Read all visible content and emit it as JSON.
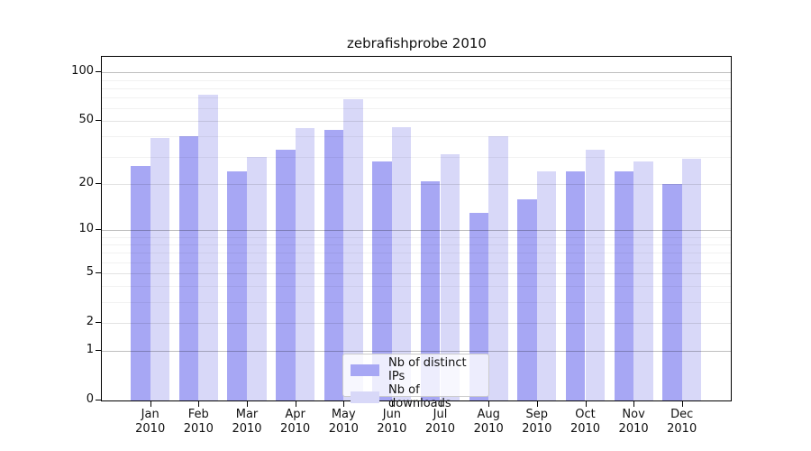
{
  "title": "zebrafishprobe 2010",
  "chart_data": {
    "type": "bar",
    "title": "zebrafishprobe 2010",
    "categories": [
      "Jan",
      "Feb",
      "Mar",
      "Apr",
      "May",
      "Jun",
      "Jul",
      "Aug",
      "Sep",
      "Oct",
      "Nov",
      "Dec"
    ],
    "year_label": "2010",
    "series": [
      {
        "name": "Nb of distinct IPs",
        "color": "#a7a7f4",
        "values": [
          26,
          40,
          24,
          33,
          44,
          28,
          21,
          13,
          16,
          24,
          24,
          20
        ]
      },
      {
        "name": "Nb of downloads",
        "color": "#d8d8f8",
        "values": [
          39,
          73,
          30,
          45,
          68,
          46,
          31,
          40,
          24,
          33,
          28,
          29
        ]
      }
    ],
    "xlabel": "",
    "ylabel": "",
    "yscale": "log1p",
    "ylim": [
      0,
      125
    ],
    "yticks": [
      0,
      1,
      2,
      5,
      10,
      20,
      50,
      100
    ],
    "grid": {
      "major": [
        1,
        10,
        100
      ],
      "submajor": [
        2,
        5,
        20,
        50
      ],
      "minor": [
        3,
        4,
        6,
        7,
        8,
        9,
        30,
        40,
        60,
        70,
        80,
        90
      ]
    },
    "legend_position": "lower center",
    "legend_entries": [
      "Nb of distinct IPs",
      "Nb of downloads"
    ]
  }
}
